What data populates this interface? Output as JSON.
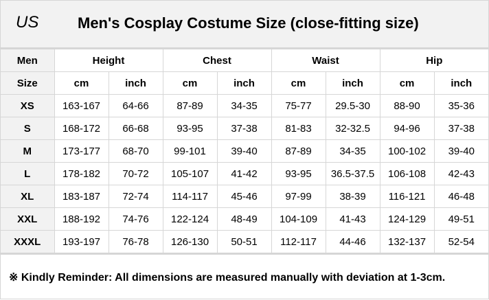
{
  "region": "US",
  "title": "Men's Cosplay Costume Size (close-fitting size)",
  "header": {
    "men": "Men",
    "size": "Size",
    "groups": [
      "Height",
      "Chest",
      "Waist",
      "Hip"
    ],
    "units": [
      "cm",
      "inch",
      "cm",
      "inch",
      "cm",
      "inch",
      "cm",
      "inch"
    ]
  },
  "rows": [
    {
      "size": "XS",
      "values": [
        "163-167",
        "64-66",
        "87-89",
        "34-35",
        "75-77",
        "29.5-30",
        "88-90",
        "35-36"
      ]
    },
    {
      "size": "S",
      "values": [
        "168-172",
        "66-68",
        "93-95",
        "37-38",
        "81-83",
        "32-32.5",
        "94-96",
        "37-38"
      ]
    },
    {
      "size": "M",
      "values": [
        "173-177",
        "68-70",
        "99-101",
        "39-40",
        "87-89",
        "34-35",
        "100-102",
        "39-40"
      ]
    },
    {
      "size": "L",
      "values": [
        "178-182",
        "70-72",
        "105-107",
        "41-42",
        "93-95",
        "36.5-37.5",
        "106-108",
        "42-43"
      ]
    },
    {
      "size": "XL",
      "values": [
        "183-187",
        "72-74",
        "114-117",
        "45-46",
        "97-99",
        "38-39",
        "116-121",
        "46-48"
      ]
    },
    {
      "size": "XXL",
      "values": [
        "188-192",
        "74-76",
        "122-124",
        "48-49",
        "104-109",
        "41-43",
        "124-129",
        "49-51"
      ]
    },
    {
      "size": "XXXL",
      "values": [
        "193-197",
        "76-78",
        "126-130",
        "50-51",
        "112-117",
        "44-46",
        "132-137",
        "52-54"
      ]
    }
  ],
  "footer": "※ Kindly Reminder: All dimensions are measured manually with deviation at 1-3cm."
}
